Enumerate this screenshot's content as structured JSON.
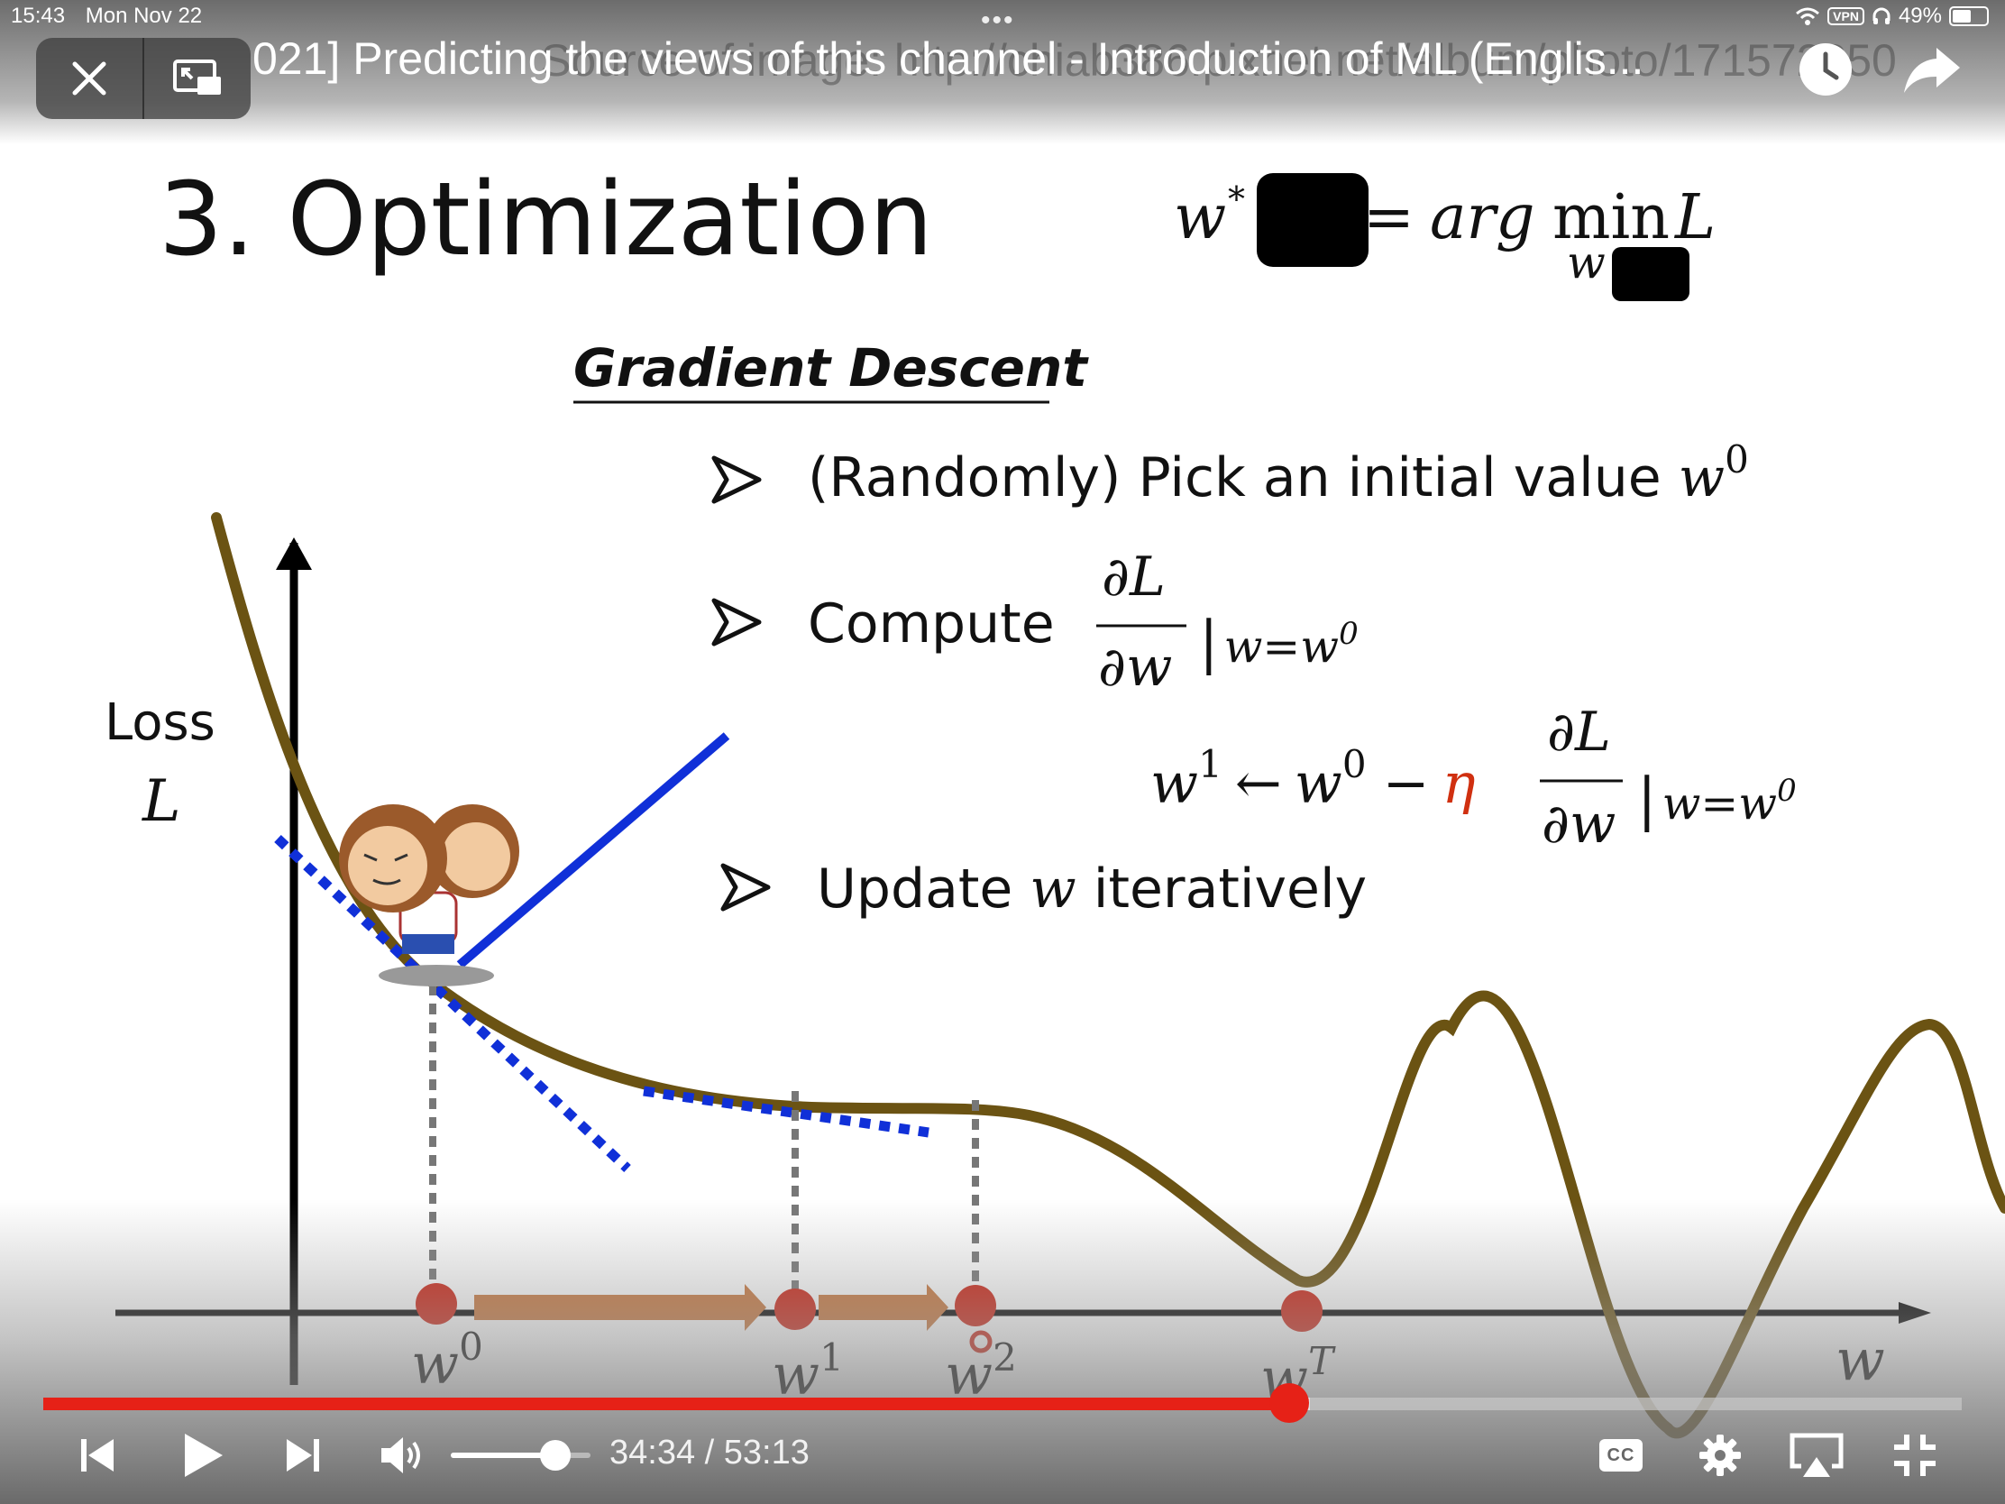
{
  "status_bar": {
    "time": "15:43",
    "date": "Mon Nov 22",
    "vpn": "VPN",
    "battery": "49%",
    "battery_level": 0.49
  },
  "video": {
    "title": "021] Predicting the views of this channel - Introduction of ML (Englis...",
    "source_overlay": "Source of image: http://chiab386.pixnet.net/album/photo/171572850"
  },
  "slide": {
    "heading": "3. Optimization",
    "formula": {
      "w": "w",
      "star": "*",
      "eq": "=",
      "arg": "arg",
      "min": "min",
      "L": "L",
      "sub": "w"
    },
    "section": "Gradient Descent",
    "bullet1": {
      "text": "(Randomly) Pick an initial value ",
      "w": "w",
      "sup": "0"
    },
    "bullet2": {
      "text": "Compute",
      "num": "∂L",
      "den": "∂w",
      "eval": "|",
      "evalw": "w=w",
      "evalsup": "0"
    },
    "update": {
      "lhs": "w",
      "lhs_sup": "1",
      "arrow": "←",
      "w0": "w",
      "w0_sup": "0",
      "minus": "−",
      "eta": "η",
      "num": "∂L",
      "den": "∂w",
      "eval": "|",
      "evalw": "w=w",
      "evalsup": "0"
    },
    "bullet3": {
      "text1": "Update ",
      "w": "w",
      "text2": " iteratively"
    },
    "axis": {
      "loss": "Loss",
      "L": "L",
      "w": "w"
    },
    "points": [
      {
        "label": "w",
        "sup": "0"
      },
      {
        "label": "w",
        "sup": "1"
      },
      {
        "label": "w",
        "sup": "2"
      },
      {
        "label": "w",
        "sup": "T"
      }
    ]
  },
  "player": {
    "time_current": "34:34",
    "time_sep": " / ",
    "time_total": "53:13",
    "progress": 0.6495,
    "buffered": 0.48,
    "volume": 0.75,
    "cc_label": "CC"
  },
  "colors": {
    "curve": "#6b5313",
    "tangent": "#1030d8",
    "point": "#cc2010",
    "arrow": "#c8753a",
    "progress": "#e62117",
    "eta": "#d03010"
  },
  "icons": {
    "close": "close-icon",
    "pip": "picture-in-picture-icon",
    "watch_later": "clock-icon",
    "share": "share-icon",
    "previous": "previous-icon",
    "play": "play-icon",
    "next": "next-icon",
    "volume": "volume-icon",
    "captions": "captions-icon",
    "settings": "gear-icon",
    "airplay": "airplay-icon",
    "exit_fullscreen": "exit-fullscreen-icon"
  }
}
